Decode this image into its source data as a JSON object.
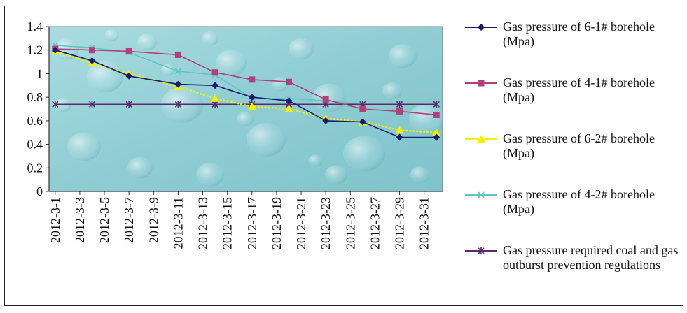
{
  "chart_data": {
    "type": "line",
    "title": "",
    "xlabel": "",
    "ylabel": "",
    "ylim": [
      0,
      1.4
    ],
    "yticks": [
      "0",
      "0.2",
      "0.4",
      "0.6",
      "0.8",
      "1",
      "1.2",
      "1.4"
    ],
    "xlim": [
      1,
      32
    ],
    "x_tick_labels": [
      "2012-3-1",
      "2012-3-3",
      "2012-3-5",
      "2012-3-7",
      "2012-3-9",
      "2012-3-11",
      "2012-3-13",
      "2012-3-15",
      "2012-3-17",
      "2012-3-19",
      "2012-3-21",
      "2012-3-23",
      "2012-3-25",
      "2012-3-27",
      "2012-3-29",
      "2012-3-31"
    ],
    "x_tick_days": [
      1,
      3,
      5,
      7,
      9,
      11,
      13,
      15,
      17,
      19,
      21,
      23,
      25,
      27,
      29,
      31
    ],
    "legend_position": "right",
    "background": "water-droplets texture",
    "series": [
      {
        "name": "Gas pressure of 6-1# borehole (Mpa)",
        "color": "#1a1a6e",
        "marker": "diamond",
        "x": [
          1,
          4,
          7,
          11,
          14,
          17,
          20,
          23,
          26,
          29,
          32
        ],
        "y": [
          1.2,
          1.11,
          0.98,
          0.91,
          0.9,
          0.8,
          0.77,
          0.6,
          0.59,
          0.46,
          0.46
        ]
      },
      {
        "name": "Gas pressure of 4-1# borehole (Mpa)",
        "color": "#b0407a",
        "marker": "square",
        "x": [
          1,
          4,
          7,
          11,
          14,
          17,
          20,
          23,
          26,
          29,
          32
        ],
        "y": [
          1.21,
          1.2,
          1.19,
          1.16,
          1.01,
          0.95,
          0.93,
          0.78,
          0.7,
          0.68,
          0.65
        ]
      },
      {
        "name": "Gas pressure of 6-2# borehole (Mpa)",
        "color": "#f2f200",
        "marker": "triangle",
        "x": [
          1,
          4,
          7,
          11,
          14,
          17,
          20,
          23,
          26,
          29,
          32
        ],
        "y": [
          1.19,
          1.09,
          1.0,
          0.89,
          0.79,
          0.72,
          0.7,
          0.62,
          0.59,
          0.52,
          0.5
        ]
      },
      {
        "name": "Gas pressure of 4-2# borehole (Mpa)",
        "color": "#5fc6c6",
        "marker": "x",
        "x": [
          1,
          4,
          7,
          11,
          14,
          17,
          20,
          23,
          26,
          29,
          32
        ],
        "y": [
          1.24,
          1.22,
          1.18,
          1.02,
          0.99,
          0.79,
          0.79,
          0.77,
          0.74,
          0.74,
          0.74
        ]
      },
      {
        "name": "Gas pressure required coal and gas outburst prevention regulations",
        "color": "#5a2a6a",
        "marker": "star",
        "x": [
          1,
          4,
          7,
          11,
          14,
          17,
          20,
          23,
          26,
          29,
          32
        ],
        "y": [
          0.74,
          0.74,
          0.74,
          0.74,
          0.74,
          0.74,
          0.74,
          0.74,
          0.74,
          0.74,
          0.74
        ]
      }
    ]
  }
}
